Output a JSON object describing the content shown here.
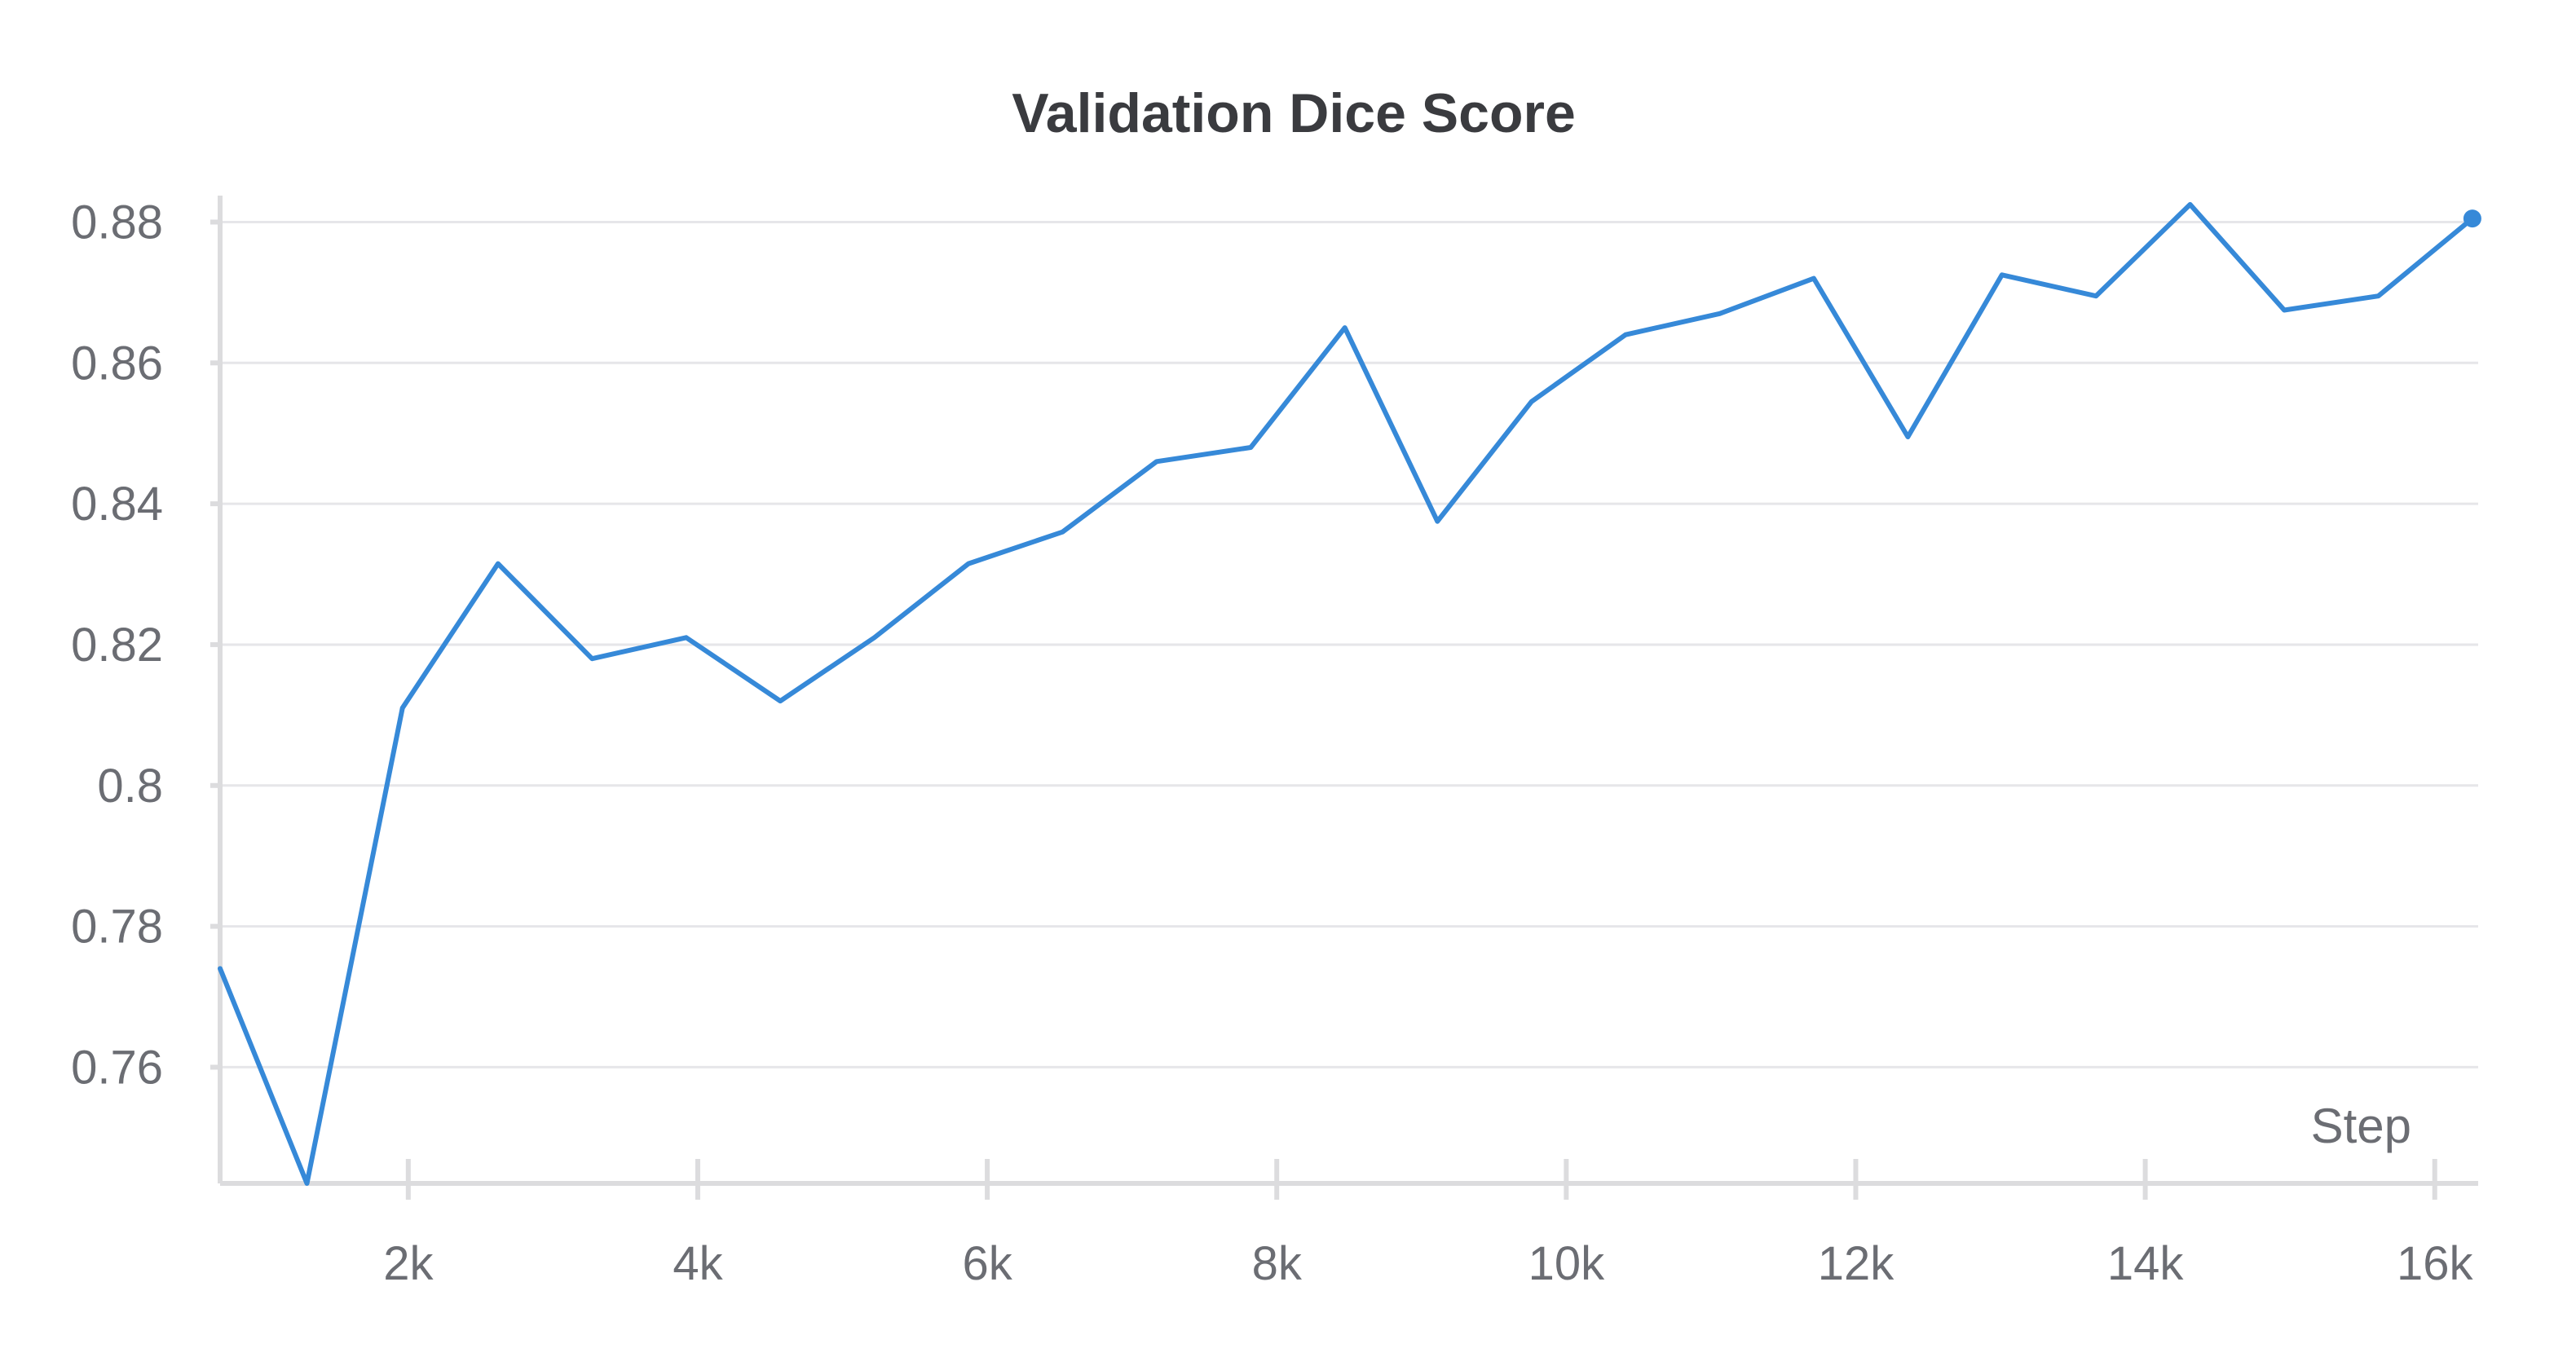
{
  "chart_data": {
    "type": "line",
    "title": "Validation Dice Score",
    "xlabel": "Step",
    "ylabel": "",
    "xlim": [
      700,
      16300
    ],
    "ylim": [
      0.7435,
      0.8826
    ],
    "x_ticks": [
      2000,
      4000,
      6000,
      8000,
      10000,
      12000,
      14000,
      16000
    ],
    "x_tick_labels": [
      "2k",
      "4k",
      "6k",
      "8k",
      "10k",
      "12k",
      "14k",
      "16k"
    ],
    "y_ticks": [
      0.76,
      0.78,
      0.8,
      0.82,
      0.84,
      0.86,
      0.88
    ],
    "y_tick_labels": [
      "0.76",
      "0.78",
      "0.8",
      "0.82",
      "0.84",
      "0.86",
      "0.88"
    ],
    "grid": true,
    "legend": "none",
    "series": [
      {
        "color": "#3689d8",
        "marker_at_last_point": true,
        "x": [
          700,
          1300,
          1960,
          2620,
          3270,
          3920,
          4570,
          5220,
          5870,
          6520,
          7170,
          7820,
          8470,
          9110,
          9760,
          10410,
          11060,
          11710,
          12360,
          13010,
          13660,
          14310,
          14960,
          15610,
          16260
        ],
        "y": [
          0.774,
          0.7435,
          0.811,
          0.8315,
          0.818,
          0.821,
          0.812,
          0.821,
          0.8315,
          0.836,
          0.846,
          0.848,
          0.865,
          0.8375,
          0.8545,
          0.864,
          0.867,
          0.872,
          0.8495,
          0.8725,
          0.8695,
          0.8825,
          0.8675,
          0.8695,
          0.8805
        ]
      }
    ]
  }
}
